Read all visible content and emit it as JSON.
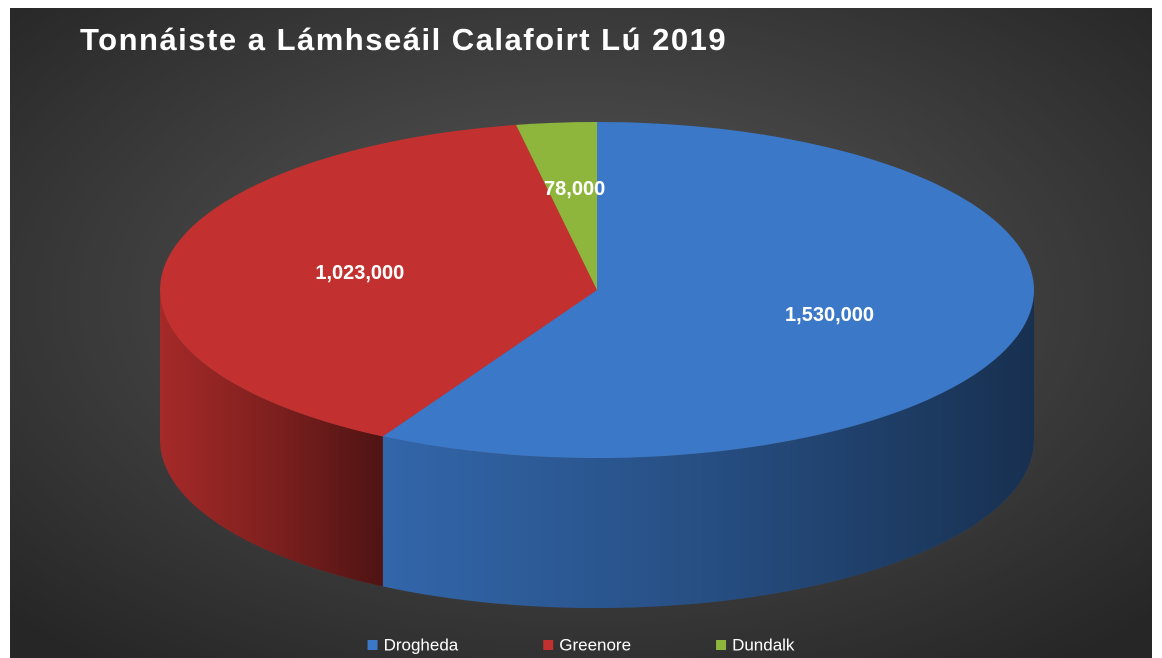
{
  "chart_data": {
    "type": "pie",
    "title": "Tonnáiste a Lámhseáil Calafoirt Lú 2019",
    "categories": [
      "Drogheda",
      "Greenore",
      "Dundalk"
    ],
    "values": [
      1530000,
      1023000,
      78000
    ],
    "value_labels": [
      "1,530,000",
      "1,023,000",
      "78,000"
    ],
    "colors": [
      "#3b78c8",
      "#c2312f",
      "#8fb63c"
    ],
    "legend": "bottom"
  }
}
